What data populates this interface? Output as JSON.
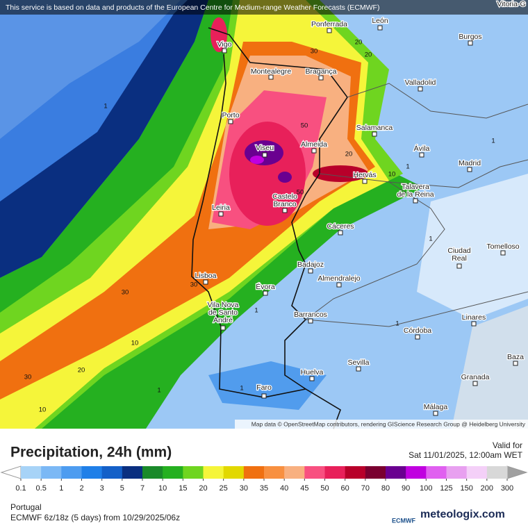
{
  "header": {
    "notice": "This service is based on data and products of the European Centre for Medium-range Weather Forecasts (ECMWF)",
    "attribution": "Map data © OpenStreetMap contributors, rendering GIScience Research Group @ Heidelberg University"
  },
  "map": {
    "cities": [
      [
        "Vitoria-G"
      ],
      [
        "Ponferrada"
      ],
      [
        "León"
      ],
      [
        "Vigo"
      ],
      [
        "Burgos"
      ],
      [
        "Montealegre"
      ],
      [
        "Bragança"
      ],
      [
        "Valladolid"
      ],
      [
        "Porto"
      ],
      [
        "Salamanca"
      ],
      [
        "Viseu"
      ],
      [
        "Almeida"
      ],
      [
        "Ávila"
      ],
      [
        "Madrid"
      ],
      [
        "Hervás"
      ],
      [
        "Talavera",
        "de la Reina"
      ],
      [
        "Leiria"
      ],
      [
        "Castelo",
        "Branco"
      ],
      [
        "Cáceres"
      ],
      [
        "Ciudad",
        "Real"
      ],
      [
        "Tomelloso"
      ],
      [
        "Badajoz"
      ],
      [
        "Almendralejo"
      ],
      [
        "Lisboa"
      ],
      [
        "Évora"
      ],
      [
        "Vila Nova",
        "de Santo",
        "André"
      ],
      [
        "Barrancos"
      ],
      [
        "Linares"
      ],
      [
        "Córdoba"
      ],
      [
        "Sevilla"
      ],
      [
        "Baza"
      ],
      [
        "Huelva"
      ],
      [
        "Granada"
      ],
      [
        "Faro"
      ],
      [
        "Málaga"
      ]
    ],
    "contour_labels": [
      30,
      20,
      20,
      1,
      50,
      20,
      10,
      50,
      30,
      30,
      1,
      10,
      20,
      30,
      1,
      10,
      1,
      1,
      1,
      1,
      1
    ]
  },
  "legend": {
    "title": "Precipitation, 24h (mm)",
    "valid_label": "Valid for",
    "valid_time": "Sat 11/01/2025, 12:00am WET",
    "ticks": [
      "0.1",
      "0.5",
      "1",
      "2",
      "3",
      "5",
      "7",
      "10",
      "15",
      "20",
      "25",
      "30",
      "35",
      "40",
      "45",
      "50",
      "60",
      "70",
      "80",
      "90",
      "100",
      "125",
      "150",
      "200",
      "300"
    ],
    "colors": [
      "#ffffff",
      "#a7d3f7",
      "#7bb8f5",
      "#4d9cf0",
      "#1f7fe8",
      "#1460c8",
      "#0a2f80",
      "#1a8a2a",
      "#25b020",
      "#6fd520",
      "#f5f53a",
      "#e2d800",
      "#f07010",
      "#f89040",
      "#f8b080",
      "#f85080",
      "#e8205a",
      "#b8002a",
      "#7a0030",
      "#6a0090",
      "#c000e0",
      "#e060f0",
      "#e8a0f0",
      "#f4d0f8",
      "#d8d8d8",
      "#a0a0a0"
    ],
    "region": "Portugal",
    "model": "ECMWF 6z/18z (5 days) from 10/29/2025/06z",
    "logo_left": "ECMWF",
    "logo_right": "meteologix.com"
  }
}
